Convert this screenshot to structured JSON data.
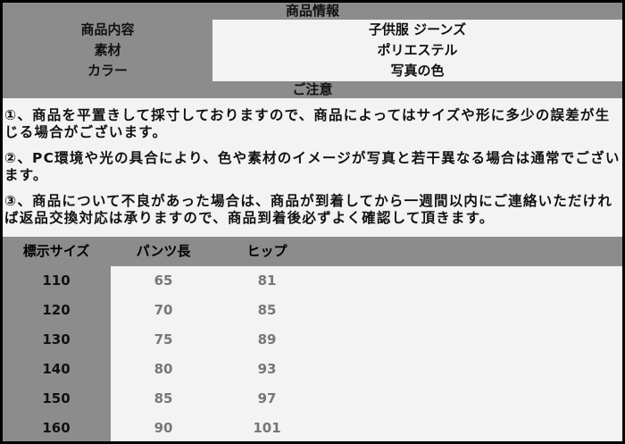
{
  "info": {
    "title": "商品情報",
    "rows": [
      {
        "label": "商品内容",
        "value": "子供服 ジーンズ"
      },
      {
        "label": "素材",
        "value": "ポリエステル"
      },
      {
        "label": "カラー",
        "value": "写真の色"
      }
    ]
  },
  "notice": {
    "title": "ご注意",
    "items": [
      "①、商品を平置きして採寸しておりますので、商品によってはサイズや形に多少の誤差が生じる場合がございます。",
      "②、PC環境や光の具合により、色や素材のイメージが写真と若干異なる場合は通常でございます。",
      "③、商品について不良があった場合は、商品が到着してから一週間以内にご連絡いただければ返品交換対応は承りますので、商品到着後必ずよく確認して頂きます。"
    ]
  },
  "size_table": {
    "headers": [
      "標示サイズ",
      "パンツ長",
      "ヒップ"
    ],
    "rows": [
      [
        "110",
        "65",
        "81"
      ],
      [
        "120",
        "70",
        "85"
      ],
      [
        "130",
        "75",
        "89"
      ],
      [
        "140",
        "80",
        "93"
      ],
      [
        "150",
        "85",
        "97"
      ],
      [
        "160",
        "90",
        "101"
      ]
    ]
  }
}
